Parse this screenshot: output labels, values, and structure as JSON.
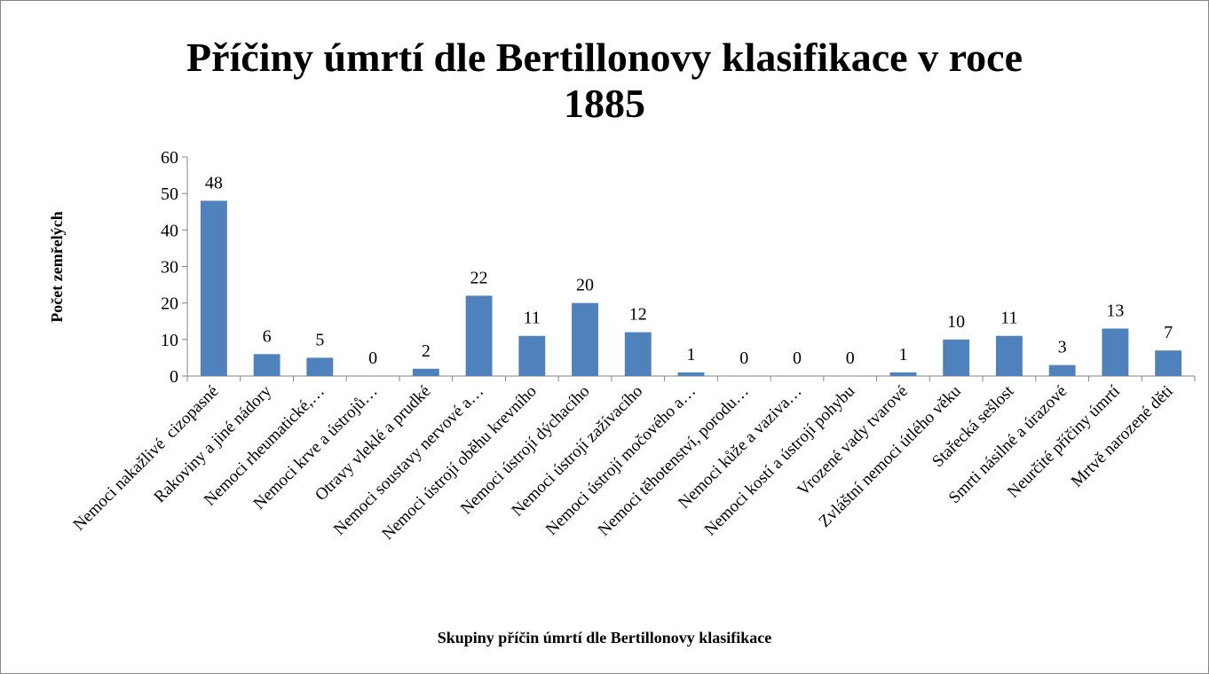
{
  "chart_data": {
    "type": "bar",
    "title": "Příčiny úmrtí dle Bertillonovy klasifikace v roce 1885",
    "x_label": "Skupiny příčin úmrtí dle Bertillonovy klasifikace",
    "y_label": "Počet zemřelých",
    "categories": [
      "Nemoci nakažlivé  cizopasné",
      "Rakoviny a jiné nádory",
      "Nemoci rheumatické,…",
      "Nemoci krve a ústrojů…",
      "Otravy vleklé a prudké",
      "Nemoci soustavy nervové a…",
      "Nemoci ústrojí oběhu krevního",
      "Nemoci ústrojí dýchacího",
      "Nemoci ústrojí zažívacího",
      "Nemoci ústrojí močového a…",
      "Nemoci těhotenství, porodu…",
      "Nemoci kůže a vaziva…",
      "Nemoci kostí a ústrojí pohybu",
      "Vrozené vady tvarové",
      "Zvláštní nemoci útlého věku",
      "Stařecká sešlost",
      "Smrti násilné a úrazové",
      "Neurčité příčiny úmrtí",
      "Mrtvě narozené děti"
    ],
    "values": [
      48,
      6,
      5,
      0,
      2,
      22,
      11,
      20,
      12,
      1,
      0,
      0,
      0,
      1,
      10,
      11,
      3,
      13,
      7
    ],
    "color": "#4f81bd",
    "ylim": [
      0,
      60
    ],
    "yticks": [
      0,
      10,
      20,
      30,
      40,
      50,
      60
    ],
    "grid": false
  }
}
